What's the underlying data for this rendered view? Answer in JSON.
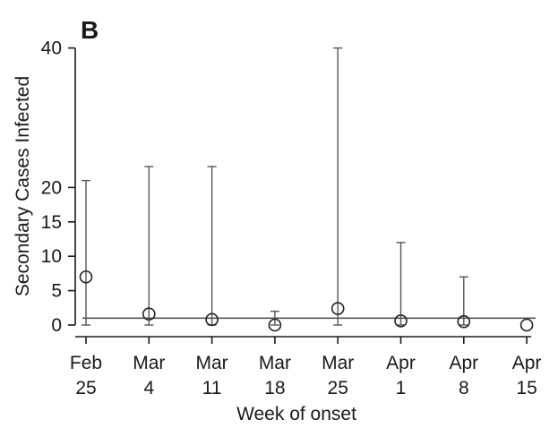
{
  "chart_data": {
    "type": "scatter",
    "panel_label": "B",
    "xlabel": "Week of onset",
    "ylabel": "Secondary Cases Infected",
    "categories": [
      {
        "month": "Feb",
        "day": "25"
      },
      {
        "month": "Mar",
        "day": "4"
      },
      {
        "month": "Mar",
        "day": "11"
      },
      {
        "month": "Mar",
        "day": "18"
      },
      {
        "month": "Mar",
        "day": "25"
      },
      {
        "month": "Apr",
        "day": "1"
      },
      {
        "month": "Apr",
        "day": "8"
      },
      {
        "month": "Apr",
        "day": "15"
      }
    ],
    "series": [
      {
        "values": [
          7,
          1.6,
          0.8,
          0,
          2.4,
          0.6,
          0.5,
          0
        ],
        "lower": [
          0,
          0,
          0,
          0,
          0,
          0,
          0,
          0
        ],
        "upper": [
          21,
          23,
          23,
          2,
          40,
          12,
          7,
          0
        ]
      }
    ],
    "reference_line": 1,
    "yticks": [
      "0",
      "5",
      "10",
      "15",
      "20",
      "40"
    ],
    "ylim": [
      0,
      40
    ],
    "grid": false,
    "legend": "none",
    "colors": {
      "ink": "#1a1a1a",
      "line": "#555555",
      "marker_stroke": "#222222"
    }
  }
}
